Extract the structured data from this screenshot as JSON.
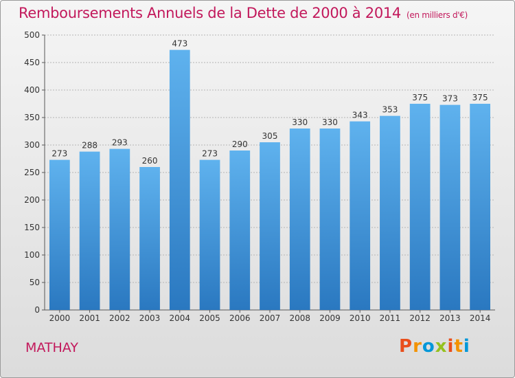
{
  "header": {
    "title": "Remboursements Annuels de la Dette de 2000 à 2014",
    "unit_note": "(en milliers d'€)"
  },
  "footer": {
    "commune": "MATHAY",
    "logo_text": "Proxiti"
  },
  "colors": {
    "title": "#c2185b",
    "bar_top": "#5fb2ee",
    "bar_bottom": "#2a78c0",
    "logo": [
      "#e94e1b",
      "#f39200",
      "#0097d8",
      "#95c11f",
      "#e94e1b",
      "#f39200",
      "#0097d8"
    ]
  },
  "chart_data": {
    "type": "bar",
    "title": "Remboursements Annuels de la Dette de 2000 à 2014",
    "categories": [
      "2000",
      "2001",
      "2002",
      "2003",
      "2004",
      "2005",
      "2006",
      "2007",
      "2008",
      "2009",
      "2010",
      "2011",
      "2012",
      "2013",
      "2014"
    ],
    "values": [
      273,
      288,
      293,
      260,
      473,
      273,
      290,
      305,
      330,
      330,
      343,
      353,
      375,
      373,
      375
    ],
    "ylim": [
      0,
      500
    ],
    "yticks": [
      0,
      50,
      100,
      150,
      200,
      250,
      300,
      350,
      400,
      450,
      500
    ],
    "grid": true
  }
}
